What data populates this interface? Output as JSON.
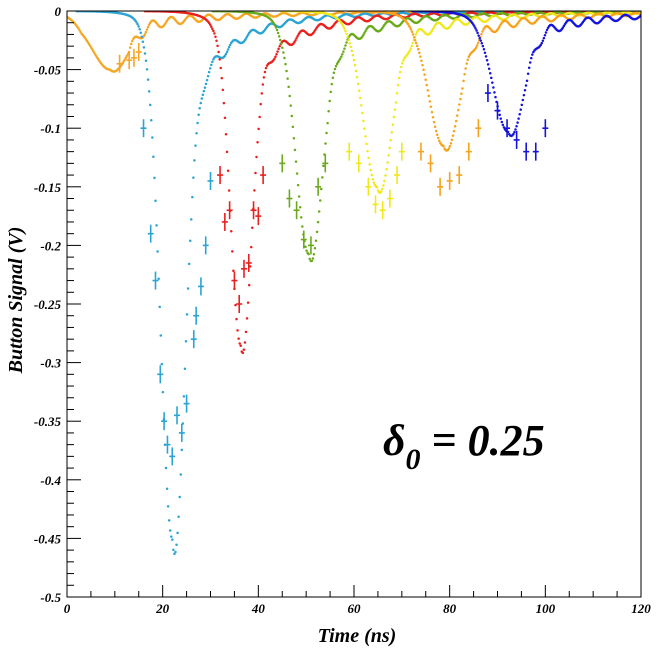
{
  "chart_data": {
    "type": "scatter",
    "title": "",
    "xlabel": "Time (ns)",
    "ylabel": "Button Signal (V)",
    "xlim": [
      0,
      120
    ],
    "ylim": [
      -0.5,
      0
    ],
    "grid": false,
    "x_ticks": [
      "0",
      "20",
      "40",
      "60",
      "80",
      "100",
      "120"
    ],
    "y_ticks": [
      "0",
      "-0.05",
      "-0.1",
      "-0.15",
      "-0.2",
      "-0.25",
      "-0.3",
      "-0.35",
      "-0.4",
      "-0.45",
      "-0.5"
    ],
    "annotation": {
      "symbol": "δ",
      "subscript": "0",
      "text": " = 0.25"
    },
    "series": [
      {
        "color": "#f5a623",
        "sim_peak": {
          "t": 9,
          "v": -0.04,
          "w": 3.5
        },
        "measured": [
          [
            11,
            -0.045
          ],
          [
            13,
            -0.042
          ],
          [
            14,
            -0.04
          ],
          [
            15,
            -0.035
          ]
        ]
      },
      {
        "color": "#2aa4d4",
        "sim_peak": {
          "t": 22,
          "v": -0.44,
          "w": 2.4
        },
        "measured": [
          [
            16,
            -0.1
          ],
          [
            17.5,
            -0.19
          ],
          [
            18.5,
            -0.23
          ],
          [
            19.5,
            -0.31
          ],
          [
            20.3,
            -0.35
          ],
          [
            21,
            -0.37
          ],
          [
            22,
            -0.38
          ],
          [
            23,
            -0.345
          ],
          [
            24,
            -0.36
          ],
          [
            25,
            -0.335
          ],
          [
            26.5,
            -0.28
          ],
          [
            27,
            -0.26
          ],
          [
            28,
            -0.235
          ],
          [
            29,
            -0.2
          ],
          [
            30,
            -0.145
          ]
        ]
      },
      {
        "color": "#e8201e",
        "sim_peak": {
          "t": 36.3,
          "v": -0.275,
          "w": 2.1
        },
        "measured": [
          [
            32,
            -0.14
          ],
          [
            33,
            -0.18
          ],
          [
            34,
            -0.17
          ],
          [
            35,
            -0.23
          ],
          [
            36,
            -0.25
          ],
          [
            37,
            -0.22
          ],
          [
            38,
            -0.215
          ],
          [
            39,
            -0.17
          ],
          [
            40,
            -0.175
          ],
          [
            41,
            -0.14
          ]
        ]
      },
      {
        "color": "#6aaa1a",
        "sim_peak": {
          "t": 50.5,
          "v": -0.197,
          "w": 2.6
        },
        "measured": [
          [
            45,
            -0.13
          ],
          [
            46.5,
            -0.16
          ],
          [
            48,
            -0.17
          ],
          [
            49.5,
            -0.195
          ],
          [
            51,
            -0.2
          ],
          [
            52.5,
            -0.15
          ],
          [
            54,
            -0.13
          ]
        ]
      },
      {
        "color": "#f0e81a",
        "sim_peak": {
          "t": 64.8,
          "v": -0.14,
          "w": 2.8
        },
        "measured": [
          [
            59,
            -0.12
          ],
          [
            61,
            -0.13
          ],
          [
            63,
            -0.15
          ],
          [
            64.5,
            -0.165
          ],
          [
            66,
            -0.17
          ],
          [
            67.5,
            -0.16
          ],
          [
            69,
            -0.14
          ],
          [
            70,
            -0.12
          ]
        ]
      },
      {
        "color": "#f7a21b",
        "sim_peak": {
          "t": 78.7,
          "v": -0.105,
          "w": 3.0
        },
        "measured": [
          [
            74,
            -0.12
          ],
          [
            76,
            -0.13
          ],
          [
            78,
            -0.15
          ],
          [
            80,
            -0.145
          ],
          [
            82,
            -0.14
          ],
          [
            84,
            -0.12
          ],
          [
            86,
            -0.1
          ]
        ]
      },
      {
        "color": "#1414dc",
        "sim_peak": {
          "t": 92.2,
          "v": -0.093,
          "w": 3.0
        },
        "measured": [
          [
            88,
            -0.07
          ],
          [
            90,
            -0.085
          ],
          [
            92,
            -0.1
          ],
          [
            94,
            -0.11
          ],
          [
            96,
            -0.12
          ],
          [
            98,
            -0.12
          ],
          [
            100,
            -0.1
          ]
        ]
      }
    ]
  }
}
